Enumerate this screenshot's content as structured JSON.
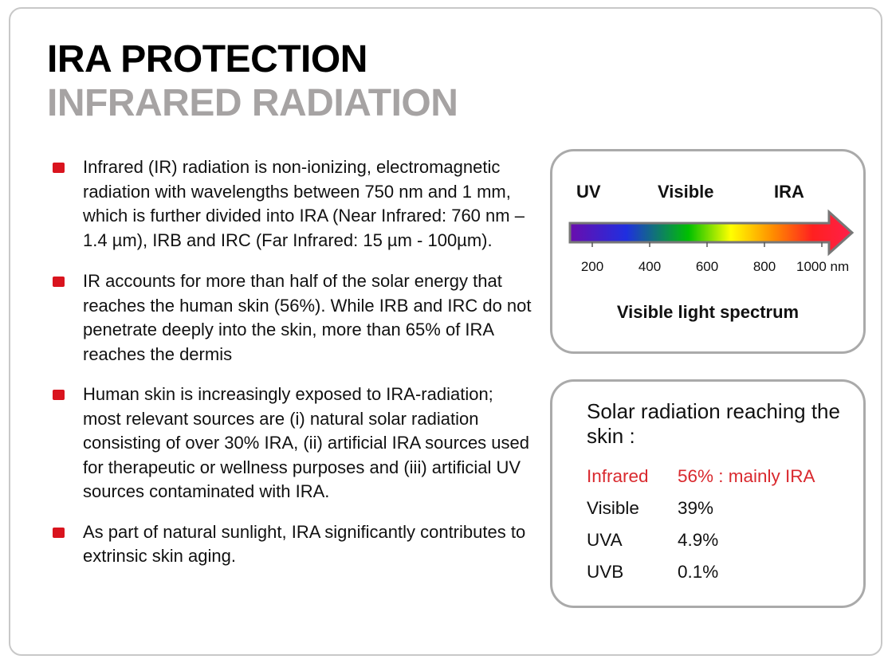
{
  "title": {
    "main": "IRA PROTECTION",
    "sub": "INFRARED RADIATION"
  },
  "bullets": [
    "Infrared (IR) radiation is non-ionizing, electromagnetic radiation with wavelengths between 750 nm and 1 mm, which is further divided into IRA (Near Infrared: 760 nm – 1.4 µm), IRB and IRC (Far Infrared: 15 µm - 100µm).",
    "IR accounts for more than half of the solar energy that reaches the human skin (56%). While IRB and IRC do not penetrate deeply into the skin, more than 65% of IRA reaches the dermis",
    "Human skin is increasingly exposed to IRA-radiation; most relevant sources are (i) natural solar radiation consisting of over 30% IRA, (ii) artificial IRA sources used for therapeutic or wellness purposes and (iii) artificial UV sources contaminated with IRA.",
    "As part of natural sunlight, IRA significantly contributes to extrinsic skin aging."
  ],
  "spectrum": {
    "bands": [
      "UV",
      "Visible",
      "IRA"
    ],
    "ticks": [
      "200",
      "400",
      "600",
      "800",
      "1000 nm"
    ],
    "caption": "Visible light spectrum",
    "gradient_colors": [
      "#6a0dad",
      "#1f2fe0",
      "#00c000",
      "#ffff00",
      "#ff8c00",
      "#ff2020",
      "#ff1f4b"
    ],
    "arrow_border_color": "#777777"
  },
  "solar": {
    "title": "Solar radiation reaching the skin :",
    "rows": [
      {
        "label": "Infrared",
        "value": "56% : mainly IRA"
      },
      {
        "label": "Visible",
        "value": "39%"
      },
      {
        "label": "UVA",
        "value": "4.9%"
      },
      {
        "label": "UVB",
        "value": "0.1%"
      }
    ],
    "highlight_color": "#d9292e"
  },
  "accent_color": "#d9141e"
}
